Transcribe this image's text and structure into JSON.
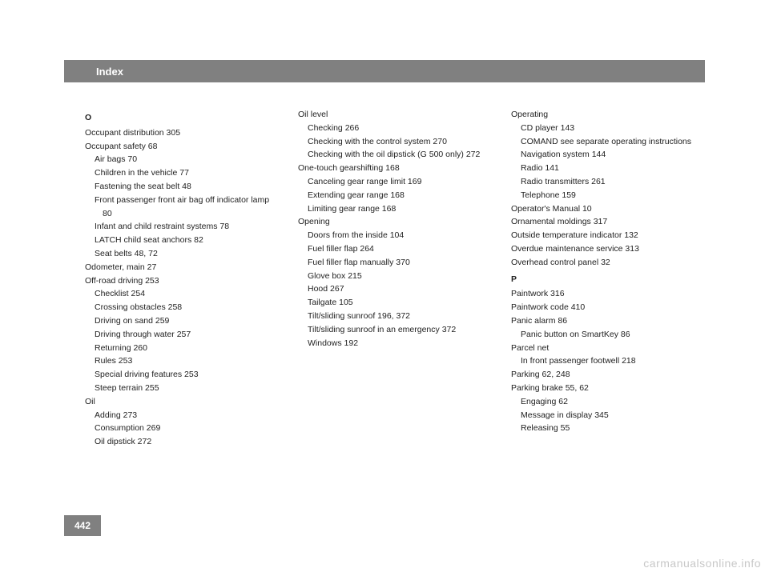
{
  "header": {
    "title": "Index"
  },
  "pageNumber": "442",
  "watermark": "carmanualsonline.info",
  "columns": {
    "col1": [
      {
        "type": "letter",
        "text": "O"
      },
      {
        "type": "entry",
        "text": "Occupant distribution   305"
      },
      {
        "type": "entry",
        "text": "Occupant safety   68"
      },
      {
        "type": "sub",
        "text": "Air bags   70"
      },
      {
        "type": "sub",
        "text": "Children in the vehicle   77"
      },
      {
        "type": "sub",
        "text": "Fastening the seat belt   48"
      },
      {
        "type": "sub",
        "text": "Front passenger front air bag off indicator lamp   80"
      },
      {
        "type": "sub",
        "text": "Infant and child restraint systems   78"
      },
      {
        "type": "sub",
        "text": "LATCH child seat anchors   82"
      },
      {
        "type": "sub",
        "text": "Seat belts   48, 72"
      },
      {
        "type": "entry",
        "text": "Odometer, main   27"
      },
      {
        "type": "entry",
        "text": "Off-road driving   253"
      },
      {
        "type": "sub",
        "text": "Checklist   254"
      },
      {
        "type": "sub",
        "text": "Crossing obstacles   258"
      },
      {
        "type": "sub",
        "text": "Driving on sand   259"
      },
      {
        "type": "sub",
        "text": "Driving through water   257"
      },
      {
        "type": "sub",
        "text": "Returning   260"
      },
      {
        "type": "sub",
        "text": "Rules   253"
      },
      {
        "type": "sub",
        "text": "Special driving features   253"
      },
      {
        "type": "sub",
        "text": "Steep terrain   255"
      },
      {
        "type": "entry",
        "text": "Oil"
      },
      {
        "type": "sub",
        "text": "Adding   273"
      },
      {
        "type": "sub",
        "text": "Consumption   269"
      },
      {
        "type": "sub",
        "text": "Oil dipstick   272"
      }
    ],
    "col2": [
      {
        "type": "entry",
        "text": "Oil level"
      },
      {
        "type": "sub",
        "text": "Checking   266"
      },
      {
        "type": "sub",
        "text": "Checking with the control system   270"
      },
      {
        "type": "sub",
        "text": "Checking with the oil dipstick (G 500 only)   272"
      },
      {
        "type": "entry",
        "text": "One-touch gearshifting   168"
      },
      {
        "type": "sub",
        "text": "Canceling gear range limit   169"
      },
      {
        "type": "sub",
        "text": "Extending gear range   168"
      },
      {
        "type": "sub",
        "text": "Limiting gear range   168"
      },
      {
        "type": "entry",
        "text": "Opening"
      },
      {
        "type": "sub",
        "text": "Doors from the inside   104"
      },
      {
        "type": "sub",
        "text": "Fuel filler flap   264"
      },
      {
        "type": "sub",
        "text": "Fuel filler flap manually   370"
      },
      {
        "type": "sub",
        "text": "Glove box   215"
      },
      {
        "type": "sub",
        "text": "Hood   267"
      },
      {
        "type": "sub",
        "text": "Tailgate   105"
      },
      {
        "type": "sub",
        "text": "Tilt/sliding sunroof   196, 372"
      },
      {
        "type": "sub",
        "text": "Tilt/sliding sunroof in an emergency   372"
      },
      {
        "type": "sub",
        "text": "Windows   192"
      }
    ],
    "col3": [
      {
        "type": "entry",
        "text": "Operating"
      },
      {
        "type": "sub",
        "text": "CD player   143"
      },
      {
        "type": "sub",
        "text": "COMAND see separate operating instructions"
      },
      {
        "type": "sub",
        "text": "Navigation system   144"
      },
      {
        "type": "sub",
        "text": "Radio   141"
      },
      {
        "type": "sub",
        "text": "Radio transmitters   261"
      },
      {
        "type": "sub",
        "text": "Telephone   159"
      },
      {
        "type": "entry",
        "text": "Operator's Manual   10"
      },
      {
        "type": "entry",
        "text": "Ornamental moldings   317"
      },
      {
        "type": "entry",
        "text": "Outside temperature indicator   132"
      },
      {
        "type": "entry",
        "text": "Overdue maintenance service   313"
      },
      {
        "type": "entry",
        "text": "Overhead control panel   32"
      },
      {
        "type": "letter",
        "text": "P"
      },
      {
        "type": "entry",
        "text": "Paintwork   316"
      },
      {
        "type": "entry",
        "text": "Paintwork code   410"
      },
      {
        "type": "entry",
        "text": "Panic alarm   86"
      },
      {
        "type": "sub",
        "text": "Panic button on SmartKey   86"
      },
      {
        "type": "entry",
        "text": "Parcel net"
      },
      {
        "type": "sub",
        "text": "In front passenger footwell   218"
      },
      {
        "type": "entry",
        "text": "Parking   62, 248"
      },
      {
        "type": "entry",
        "text": "Parking brake   55, 62"
      },
      {
        "type": "sub",
        "text": "Engaging   62"
      },
      {
        "type": "sub",
        "text": "Message in display   345"
      },
      {
        "type": "sub",
        "text": "Releasing   55"
      }
    ]
  },
  "style": {
    "header_bg": "#808080",
    "header_text_color": "#ffffff",
    "text_color": "#222222",
    "fontsize_body": 10.5,
    "fontsize_header": 13,
    "fontsize_pagenum": 12,
    "page_bg": "#ffffff",
    "watermark_color": "#c8c8c8"
  }
}
